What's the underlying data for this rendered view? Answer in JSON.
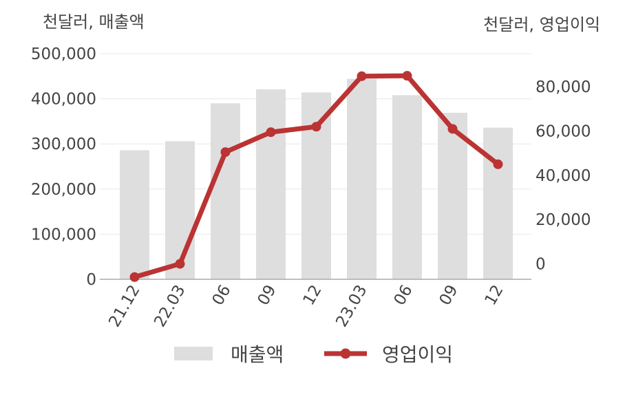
{
  "colors": {
    "bar": "#dedede",
    "line": "#bb3333",
    "grid": "#e8e8e8",
    "axis": "#aaaaaa",
    "text": "#444444"
  },
  "left_unit_label": "천달러, 매출액",
  "right_unit_label": "천달러, 영업이익",
  "legend": {
    "revenue": "매출액",
    "operating_profit": "영업이익"
  },
  "chart_data": {
    "type": "bar",
    "categories": [
      "21.12",
      "22.03",
      "06",
      "09",
      "12",
      "23.03",
      "06",
      "09",
      "12"
    ],
    "series": [
      {
        "name": "매출액",
        "type": "bar",
        "axis": "left",
        "values": [
          286000,
          306000,
          390000,
          421000,
          414000,
          444000,
          408000,
          369000,
          336000
        ]
      },
      {
        "name": "영업이익",
        "type": "line",
        "axis": "right",
        "values": [
          -6000,
          0,
          50500,
          59500,
          62000,
          84800,
          85000,
          61000,
          45000
        ]
      }
    ],
    "y_left": {
      "ylim": [
        0,
        500000
      ],
      "ticks": [
        0,
        100000,
        200000,
        300000,
        400000,
        500000
      ],
      "tick_labels": [
        "0",
        "100,000",
        "200,000",
        "300,000",
        "400,000",
        "500,000"
      ]
    },
    "y_right": {
      "ylim": [
        -7000,
        95000
      ],
      "ticks": [
        0,
        20000,
        40000,
        60000,
        80000
      ],
      "tick_labels": [
        "0",
        "20,000",
        "40,000",
        "60,000",
        "80,000"
      ]
    },
    "grid": true,
    "legend_position": "bottom"
  }
}
